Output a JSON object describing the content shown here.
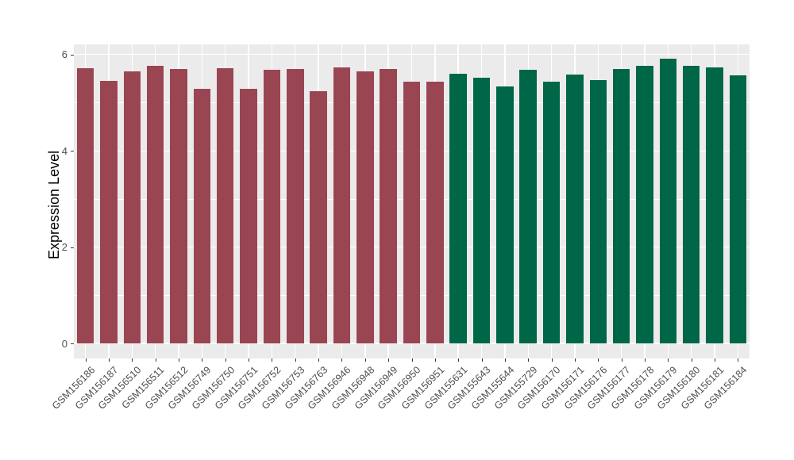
{
  "chart_data": {
    "type": "bar",
    "title": "",
    "xlabel": "",
    "ylabel": "Expression Level",
    "ylim": [
      -0.31,
      6.21
    ],
    "yticks": [
      0,
      2,
      4,
      6
    ],
    "yticks_minor": [
      1,
      3,
      5
    ],
    "grid": "on",
    "legend": "none",
    "panel_bg": "#EBEBEB",
    "grid_color": "#FFFFFF",
    "groups": [
      {
        "name": "group-red",
        "color": "#9A4552",
        "samples": [
          "GSM156186",
          "GSM156187",
          "GSM156510",
          "GSM156511",
          "GSM156512",
          "GSM156749",
          "GSM156750",
          "GSM156751",
          "GSM156752",
          "GSM156753",
          "GSM156763",
          "GSM156946",
          "GSM156948",
          "GSM156949",
          "GSM156950",
          "GSM156951"
        ],
        "values": [
          5.72,
          5.45,
          5.65,
          5.76,
          5.7,
          5.29,
          5.71,
          5.29,
          5.68,
          5.7,
          5.24,
          5.73,
          5.65,
          5.7,
          5.44,
          5.44
        ]
      },
      {
        "name": "group-green",
        "color": "#006648",
        "samples": [
          "GSM155631",
          "GSM155643",
          "GSM155644",
          "GSM155729",
          "GSM156170",
          "GSM156171",
          "GSM156176",
          "GSM156177",
          "GSM156178",
          "GSM156179",
          "GSM156180",
          "GSM156181",
          "GSM156184"
        ],
        "values": [
          5.6,
          5.52,
          5.33,
          5.68,
          5.44,
          5.58,
          5.47,
          5.7,
          5.76,
          5.91,
          5.76,
          5.73,
          5.57
        ]
      }
    ]
  }
}
